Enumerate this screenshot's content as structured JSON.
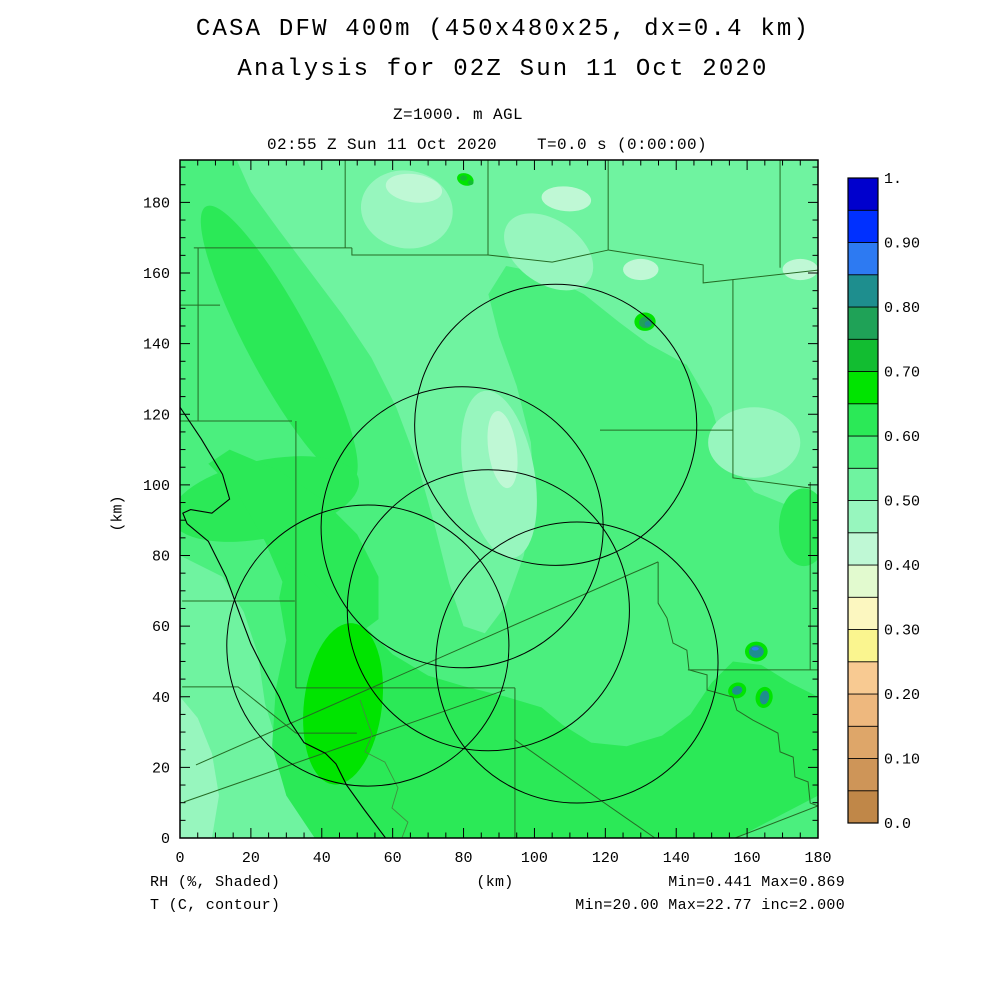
{
  "header": {
    "title_line1": "CASA DFW 400m (450x480x25, dx=0.4 km)",
    "title_line2": "Analysis for 02Z Sun 11 Oct 2020",
    "level_label": "Z=1000. m AGL",
    "time_label": "02:55 Z Sun 11 Oct 2020    T=0.0 s (0:00:00)"
  },
  "footer": {
    "shaded_label": "RH (%, Shaded)",
    "contour_label": "T (C, contour)",
    "xaxis_unit": "(km)",
    "rh_minmax": "Min=0.441 Max=0.869",
    "t_minmax": "Min=20.00 Max=22.77 inc=2.000"
  },
  "chart_data": {
    "type": "heatmap",
    "title": "CASA DFW 400m RH analysis at Z=1000 m AGL",
    "shaded_field": "RH (%)",
    "contour_field": "T (C)",
    "xlabel": "(km)",
    "ylabel": "(km)",
    "x_range": [
      0,
      180
    ],
    "y_range": [
      0,
      192
    ],
    "x_major_ticks": [
      0,
      20,
      40,
      60,
      80,
      100,
      120,
      140,
      160,
      180
    ],
    "y_major_ticks": [
      0,
      20,
      40,
      60,
      80,
      100,
      120,
      140,
      160,
      180
    ],
    "minor_tick_step": 5,
    "rh_min": 0.441,
    "rh_max": 0.869,
    "t_min": 20.0,
    "t_max": 22.77,
    "t_inc": 2.0,
    "colorbar": {
      "min": 0,
      "max": 1,
      "labels": [
        "1.",
        "0.90",
        "0.80",
        "0.70",
        "0.60",
        "0.50",
        "0.40",
        "0.30",
        "0.20",
        "0.10",
        "0.0"
      ],
      "label_values": [
        1.0,
        0.9,
        0.8,
        0.7,
        0.6,
        0.5,
        0.4,
        0.3,
        0.2,
        0.1,
        0.0
      ],
      "colors": [
        "#C08748",
        "#CE9558",
        "#DEA669",
        "#EEB87E",
        "#F8CA92",
        "#FAF58F",
        "#FCF7C0",
        "#E2FACF",
        "#BFF8D5",
        "#97F6BE",
        "#6FF3A0",
        "#4BEF7E",
        "#2BE957",
        "#00E400",
        "#12BD31",
        "#1FA257",
        "#1E8E8E",
        "#2D7AF2",
        "#0030FF",
        "#0000CD"
      ]
    },
    "base_bin": 11,
    "regions": [
      {
        "name": "light-upper",
        "bin": 10,
        "poly": [
          [
            16,
            192
          ],
          [
            180,
            192
          ],
          [
            180,
            96
          ],
          [
            172,
            94
          ],
          [
            162,
            98
          ],
          [
            154,
            108
          ],
          [
            150,
            122
          ],
          [
            143,
            134
          ],
          [
            132,
            140
          ],
          [
            124,
            146
          ],
          [
            114,
            154
          ],
          [
            102,
            160
          ],
          [
            92,
            162
          ],
          [
            87,
            154
          ],
          [
            90,
            142
          ],
          [
            95,
            128
          ],
          [
            99,
            112
          ],
          [
            100,
            96
          ],
          [
            97,
            80
          ],
          [
            92,
            66
          ],
          [
            86,
            58
          ],
          [
            80,
            60
          ],
          [
            76,
            72
          ],
          [
            72,
            88
          ],
          [
            67,
            106
          ],
          [
            61,
            122
          ],
          [
            54,
            136
          ],
          [
            46,
            148
          ],
          [
            37,
            160
          ],
          [
            28,
            172
          ],
          [
            20,
            183
          ]
        ]
      },
      {
        "name": "light-southwest",
        "bin": 10,
        "poly": [
          [
            0,
            80
          ],
          [
            12,
            74
          ],
          [
            18,
            64
          ],
          [
            22,
            52
          ],
          [
            24,
            38
          ],
          [
            28,
            25
          ],
          [
            34,
            13
          ],
          [
            40,
            0
          ],
          [
            0,
            0
          ]
        ]
      },
      {
        "name": "lighter-top-a",
        "bin": 9,
        "ellipse": [
          64,
          178,
          13,
          11,
          -10
        ]
      },
      {
        "name": "lighter-top-b",
        "bin": 9,
        "ellipse": [
          104,
          166,
          14,
          9,
          -35
        ]
      },
      {
        "name": "lighter-center",
        "bin": 9,
        "ellipse": [
          90,
          103,
          10,
          24,
          10
        ]
      },
      {
        "name": "lighter-right",
        "bin": 9,
        "ellipse": [
          162,
          112,
          13,
          10,
          0
        ]
      },
      {
        "name": "lighter-sw-corner",
        "bin": 9,
        "poly": [
          [
            0,
            40
          ],
          [
            5,
            34
          ],
          [
            9,
            24
          ],
          [
            11,
            12
          ],
          [
            9,
            0
          ],
          [
            0,
            0
          ]
        ]
      },
      {
        "name": "lightest-top-a",
        "bin": 8,
        "ellipse": [
          66,
          184,
          8,
          4,
          -8
        ]
      },
      {
        "name": "lightest-top-b",
        "bin": 8,
        "ellipse": [
          109,
          181,
          7,
          3.5,
          -5
        ]
      },
      {
        "name": "lightest-center",
        "bin": 8,
        "ellipse": [
          91,
          110,
          4,
          11,
          8
        ]
      },
      {
        "name": "lightest-right-a",
        "bin": 8,
        "ellipse": [
          175,
          161,
          5,
          3,
          0
        ]
      },
      {
        "name": "lightest-right-b",
        "bin": 8,
        "ellipse": [
          130,
          161,
          5,
          3,
          0
        ]
      },
      {
        "name": "dark-nw-band",
        "bin": 12,
        "ellipse": [
          28,
          140,
          9,
          44,
          28
        ]
      },
      {
        "name": "dark-west",
        "bin": 12,
        "ellipse": [
          24,
          96,
          27,
          11,
          12
        ]
      },
      {
        "name": "dark-mid",
        "bin": 12,
        "poly": [
          [
            14,
            110
          ],
          [
            28,
            104
          ],
          [
            40,
            96
          ],
          [
            50,
            86
          ],
          [
            56,
            74
          ],
          [
            56,
            62
          ],
          [
            48,
            56
          ],
          [
            38,
            60
          ],
          [
            30,
            70
          ],
          [
            24,
            84
          ],
          [
            16,
            98
          ],
          [
            8,
            106
          ]
        ]
      },
      {
        "name": "dark-south",
        "bin": 12,
        "poly": [
          [
            38,
            0
          ],
          [
            30,
            12
          ],
          [
            26,
            26
          ],
          [
            27,
            42
          ],
          [
            30,
            56
          ],
          [
            28,
            68
          ],
          [
            30,
            78
          ],
          [
            36,
            74
          ],
          [
            44,
            66
          ],
          [
            52,
            60
          ],
          [
            60,
            52
          ],
          [
            70,
            46
          ],
          [
            80,
            43
          ],
          [
            92,
            40
          ],
          [
            102,
            37
          ],
          [
            108,
            32
          ],
          [
            116,
            27
          ],
          [
            126,
            26
          ],
          [
            136,
            29
          ],
          [
            144,
            35
          ],
          [
            150,
            44
          ],
          [
            156,
            50
          ],
          [
            164,
            49
          ],
          [
            172,
            44
          ],
          [
            180,
            40
          ],
          [
            180,
            12
          ],
          [
            157,
            0
          ]
        ]
      },
      {
        "name": "dark-right-edge",
        "bin": 12,
        "ellipse": [
          176,
          88,
          7,
          11,
          0
        ]
      },
      {
        "name": "bright-blob",
        "bin": 13,
        "ellipse": [
          46,
          38,
          11,
          23,
          -7
        ]
      }
    ],
    "spots": [
      {
        "name": "spot-ne-halo",
        "bin": 13,
        "ellipse": [
          131.2,
          146.2,
          3.0,
          2.6,
          0
        ]
      },
      {
        "name": "spot-ne-core",
        "bin": 15,
        "ellipse": [
          131.4,
          146.0,
          1.9,
          1.6,
          0
        ]
      },
      {
        "name": "spot-ne-dot",
        "bin": 16,
        "ellipse": [
          132.0,
          145.6,
          0.9,
          0.8,
          0
        ]
      },
      {
        "name": "spot-top-halo",
        "bin": 13,
        "ellipse": [
          80.5,
          186.5,
          2.4,
          1.7,
          -20
        ]
      },
      {
        "name": "spot-top-core-a",
        "bin": 14,
        "ellipse": [
          80.0,
          186.9,
          1.0,
          0.8,
          0
        ]
      },
      {
        "name": "spot-top-core-b",
        "bin": 14,
        "ellipse": [
          82.0,
          185.6,
          0.8,
          0.7,
          0
        ]
      },
      {
        "name": "spot-se1-halo",
        "bin": 13,
        "ellipse": [
          162.6,
          52.8,
          3.2,
          2.8,
          0
        ]
      },
      {
        "name": "spot-se1-core",
        "bin": 16,
        "ellipse": [
          162.6,
          52.8,
          2.1,
          1.8,
          0
        ]
      },
      {
        "name": "spot-se1-dot",
        "bin": 17,
        "ellipse": [
          162.3,
          53.6,
          1.0,
          0.5,
          0
        ]
      },
      {
        "name": "spot-se2-halo",
        "bin": 13,
        "ellipse": [
          157.2,
          41.8,
          2.6,
          2.2,
          20
        ]
      },
      {
        "name": "spot-se2-core",
        "bin": 16,
        "ellipse": [
          157.2,
          41.8,
          1.5,
          1.2,
          20
        ]
      },
      {
        "name": "spot-se3-halo",
        "bin": 13,
        "ellipse": [
          164.8,
          39.8,
          2.4,
          3.0,
          -10
        ]
      },
      {
        "name": "spot-se3-core",
        "bin": 16,
        "ellipse": [
          164.9,
          39.8,
          1.3,
          2.0,
          -10
        ]
      }
    ],
    "county_lines": [
      [
        [
          3.9,
          167.1
        ],
        [
          48.5,
          167.1
        ]
      ],
      [
        [
          46.6,
          192
        ],
        [
          46.6,
          167.1
        ]
      ],
      [
        [
          5.1,
          167.1
        ],
        [
          5.1,
          118.1
        ]
      ],
      [
        [
          0,
          118.1
        ],
        [
          31.6,
          118.1
        ]
      ],
      [
        [
          32.7,
          118.1
        ],
        [
          32.7,
          42.5
        ]
      ],
      [
        [
          0.6,
          67.1
        ],
        [
          32.4,
          67.1
        ]
      ],
      [
        [
          0.6,
          42.8
        ],
        [
          16.4,
          42.8
        ],
        [
          32.7,
          29.7
        ]
      ],
      [
        [
          48.5,
          167.1
        ],
        [
          48.5,
          165.1
        ],
        [
          86.9,
          165.1
        ]
      ],
      [
        [
          86.9,
          192
        ],
        [
          86.9,
          165.1
        ]
      ],
      [
        [
          86.9,
          165.1
        ],
        [
          105,
          163.1
        ],
        [
          120.8,
          166.5
        ]
      ],
      [
        [
          120.8,
          192
        ],
        [
          120.8,
          166.5
        ]
      ],
      [
        [
          120.8,
          166.5
        ],
        [
          147.6,
          162.3
        ],
        [
          147.6,
          157.2
        ],
        [
          180,
          160.8
        ]
      ],
      [
        [
          169.3,
          192
        ],
        [
          169.3,
          161.5
        ]
      ],
      [
        [
          156,
          158.2
        ],
        [
          156,
          102
        ],
        [
          177.8,
          99.1
        ]
      ],
      [
        [
          118.5,
          115.5
        ],
        [
          156,
          115.5
        ]
      ],
      [
        [
          177.8,
          100.8
        ],
        [
          177.8,
          47.6
        ]
      ],
      [
        [
          143.3,
          47.6
        ],
        [
          180,
          47.6
        ]
      ],
      [
        [
          134.9,
          78.2
        ],
        [
          134.9,
          66.5
        ],
        [
          137.4,
          62.3
        ],
        [
          139.1,
          55.2
        ],
        [
          143.0,
          53.2
        ],
        [
          143.6,
          47.6
        ],
        [
          148.7,
          46.2
        ],
        [
          148.7,
          41.9
        ],
        [
          156.0,
          39.9
        ],
        [
          157.1,
          36.2
        ],
        [
          161.6,
          33.4
        ],
        [
          168.7,
          29.7
        ],
        [
          169.3,
          24.4
        ],
        [
          173.0,
          22.9
        ],
        [
          173.5,
          17.3
        ],
        [
          177.2,
          15.9
        ],
        [
          177.8,
          9.9
        ],
        [
          180,
          9.1
        ]
      ],
      [
        [
          4.5,
          20.7
        ],
        [
          134.9,
          78.2
        ]
      ],
      [
        [
          1.1,
          10.2
        ],
        [
          91.7,
          41.9
        ]
      ],
      [
        [
          94.5,
          42.5
        ],
        [
          94.5,
          0
        ]
      ],
      [
        [
          94.5,
          27.8
        ],
        [
          118.5,
          10.8
        ],
        [
          134,
          0
        ]
      ],
      [
        [
          32.7,
          42.5
        ],
        [
          94.5,
          42.5
        ]
      ],
      [
        [
          180,
          9.1
        ],
        [
          156.6,
          0
        ]
      ],
      [
        [
          0,
          150.9
        ],
        [
          11.3,
          150.9
        ]
      ],
      [
        [
          32.7,
          29.7
        ],
        [
          49.9,
          29.7
        ]
      ]
    ],
    "rivers": [
      [
        [
          50.8,
          39.1
        ],
        [
          54.2,
          29.2
        ],
        [
          52.2,
          24.4
        ],
        [
          57.8,
          21.5
        ],
        [
          61.5,
          14.2
        ],
        [
          59.8,
          8.5
        ],
        [
          64.3,
          4.5
        ],
        [
          62.6,
          0
        ]
      ]
    ],
    "contour_line": [
      [
        0,
        122
      ],
      [
        6,
        113
      ],
      [
        12,
        103
      ],
      [
        14,
        96
      ],
      [
        9,
        92
      ],
      [
        3,
        93
      ],
      [
        0.8,
        92
      ],
      [
        2,
        89
      ],
      [
        8,
        84
      ],
      [
        13,
        74
      ],
      [
        17,
        63
      ],
      [
        20,
        55
      ],
      [
        23,
        49
      ],
      [
        25.5,
        44.5
      ],
      [
        28,
        40
      ],
      [
        31,
        33
      ],
      [
        35,
        27
      ],
      [
        41,
        24
      ],
      [
        44,
        21
      ],
      [
        47,
        15
      ],
      [
        52,
        8
      ],
      [
        55,
        4
      ],
      [
        58,
        0
      ]
    ],
    "range_circles": [
      {
        "cx": 106.0,
        "cy": 117.0,
        "r": 39.8
      },
      {
        "cx": 79.6,
        "cy": 88.0,
        "r": 39.8
      },
      {
        "cx": 87.0,
        "cy": 64.5,
        "r": 39.8
      },
      {
        "cx": 53.0,
        "cy": 54.5,
        "r": 39.8
      },
      {
        "cx": 112.0,
        "cy": 49.7,
        "r": 39.8
      }
    ],
    "line_colors": {
      "county": "#256b25",
      "river": "#3f8f3f",
      "contour": "#000000",
      "circle": "#000000"
    }
  }
}
